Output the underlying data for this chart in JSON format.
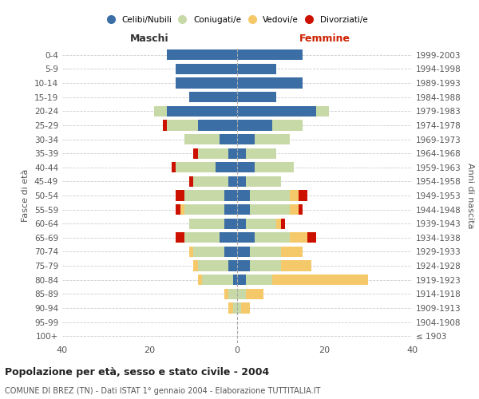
{
  "age_groups": [
    "100+",
    "95-99",
    "90-94",
    "85-89",
    "80-84",
    "75-79",
    "70-74",
    "65-69",
    "60-64",
    "55-59",
    "50-54",
    "45-49",
    "40-44",
    "35-39",
    "30-34",
    "25-29",
    "20-24",
    "15-19",
    "10-14",
    "5-9",
    "0-4"
  ],
  "birth_years": [
    "≤ 1903",
    "1904-1908",
    "1909-1913",
    "1914-1918",
    "1919-1923",
    "1924-1928",
    "1929-1933",
    "1934-1938",
    "1939-1943",
    "1944-1948",
    "1949-1953",
    "1954-1958",
    "1959-1963",
    "1964-1968",
    "1969-1973",
    "1974-1978",
    "1979-1983",
    "1984-1988",
    "1989-1993",
    "1994-1998",
    "1999-2003"
  ],
  "maschi": {
    "celibi": [
      0,
      0,
      0,
      0,
      1,
      2,
      3,
      4,
      3,
      3,
      3,
      2,
      5,
      2,
      4,
      9,
      16,
      11,
      14,
      14,
      16
    ],
    "coniugati": [
      0,
      0,
      1,
      2,
      7,
      7,
      7,
      8,
      8,
      9,
      9,
      8,
      9,
      7,
      8,
      7,
      3,
      0,
      0,
      0,
      0
    ],
    "vedovi": [
      0,
      0,
      1,
      1,
      1,
      1,
      1,
      0,
      0,
      1,
      0,
      0,
      0,
      0,
      0,
      0,
      0,
      0,
      0,
      0,
      0
    ],
    "divorziati": [
      0,
      0,
      0,
      0,
      0,
      0,
      0,
      2,
      0,
      1,
      2,
      1,
      1,
      1,
      0,
      1,
      0,
      0,
      0,
      0,
      0
    ]
  },
  "femmine": {
    "nubili": [
      0,
      0,
      0,
      0,
      2,
      3,
      3,
      4,
      2,
      3,
      3,
      2,
      4,
      2,
      4,
      8,
      18,
      9,
      15,
      9,
      15
    ],
    "coniugate": [
      0,
      0,
      1,
      2,
      6,
      7,
      7,
      8,
      7,
      9,
      9,
      8,
      9,
      7,
      8,
      7,
      3,
      0,
      0,
      0,
      0
    ],
    "vedove": [
      0,
      0,
      2,
      4,
      22,
      7,
      5,
      4,
      1,
      2,
      2,
      0,
      0,
      0,
      0,
      0,
      0,
      0,
      0,
      0,
      0
    ],
    "divorziate": [
      0,
      0,
      0,
      0,
      0,
      0,
      0,
      2,
      1,
      1,
      2,
      0,
      0,
      0,
      0,
      0,
      0,
      0,
      0,
      0,
      0
    ]
  },
  "colors": {
    "celibi": "#3a6ea5",
    "coniugati": "#c8d9a8",
    "vedovi": "#f5c96a",
    "divorziati": "#cc1100"
  },
  "xlim": 40,
  "title": "Popolazione per età, sesso e stato civile - 2004",
  "subtitle": "COMUNE DI BREZ (TN) - Dati ISTAT 1° gennaio 2004 - Elaborazione TUTTITALIA.IT",
  "ylabel_left": "Fasce di età",
  "ylabel_right": "Anni di nascita",
  "xlabel_maschi": "Maschi",
  "xlabel_femmine": "Femmine",
  "legend_labels": [
    "Celibi/Nubili",
    "Coniugati/e",
    "Vedovi/e",
    "Divorziati/e"
  ],
  "background_color": "#ffffff",
  "grid_color": "#cccccc"
}
